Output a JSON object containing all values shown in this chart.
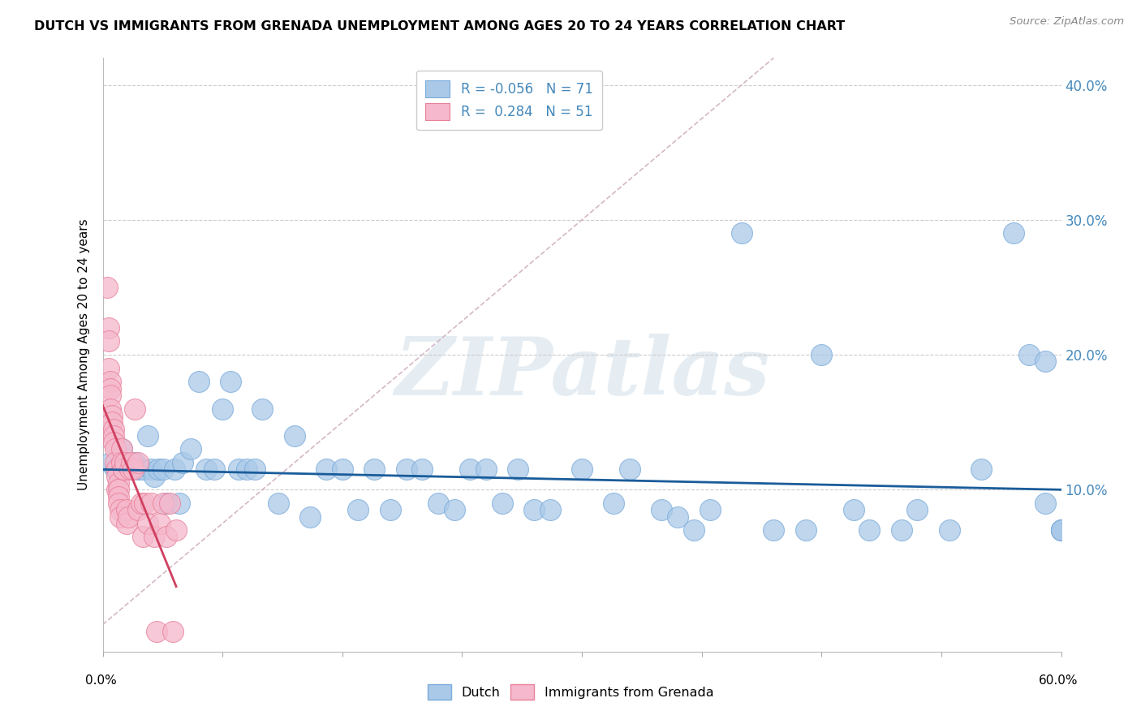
{
  "title": "DUTCH VS IMMIGRANTS FROM GRENADA UNEMPLOYMENT AMONG AGES 20 TO 24 YEARS CORRELATION CHART",
  "source": "Source: ZipAtlas.com",
  "ylabel": "Unemployment Among Ages 20 to 24 years",
  "xlim": [
    0.0,
    0.6
  ],
  "ylim": [
    -0.02,
    0.42
  ],
  "yticks": [
    0.1,
    0.2,
    0.3,
    0.4
  ],
  "ytick_labels": [
    "10.0%",
    "20.0%",
    "30.0%",
    "40.0%"
  ],
  "dutch_R": -0.056,
  "dutch_N": 71,
  "grenada_R": 0.284,
  "grenada_N": 51,
  "dutch_color": "#aac9e8",
  "dutch_edge": "#7aabdb",
  "grenada_color": "#f5b8cc",
  "grenada_edge": "#e8809a",
  "regression_blue": "#1a5c9a",
  "regression_pink": "#d04060",
  "diagonal_color": "#d0b0c0",
  "watermark": "ZIPatlas",
  "dutch_x": [
    0.005,
    0.008,
    0.01,
    0.012,
    0.015,
    0.018,
    0.02,
    0.022,
    0.025,
    0.028,
    0.03,
    0.032,
    0.035,
    0.038,
    0.04,
    0.045,
    0.048,
    0.05,
    0.055,
    0.06,
    0.065,
    0.07,
    0.075,
    0.08,
    0.085,
    0.09,
    0.095,
    0.1,
    0.11,
    0.12,
    0.13,
    0.14,
    0.15,
    0.16,
    0.17,
    0.18,
    0.19,
    0.2,
    0.21,
    0.22,
    0.23,
    0.24,
    0.25,
    0.26,
    0.27,
    0.28,
    0.3,
    0.32,
    0.33,
    0.35,
    0.36,
    0.37,
    0.38,
    0.4,
    0.42,
    0.44,
    0.45,
    0.47,
    0.48,
    0.5,
    0.51,
    0.53,
    0.55,
    0.57,
    0.58,
    0.59,
    0.59,
    0.6,
    0.6,
    0.6,
    0.6
  ],
  "dutch_y": [
    0.12,
    0.115,
    0.115,
    0.13,
    0.115,
    0.115,
    0.12,
    0.115,
    0.115,
    0.14,
    0.115,
    0.11,
    0.115,
    0.115,
    0.09,
    0.115,
    0.09,
    0.12,
    0.13,
    0.18,
    0.115,
    0.115,
    0.16,
    0.18,
    0.115,
    0.115,
    0.115,
    0.16,
    0.09,
    0.14,
    0.08,
    0.115,
    0.115,
    0.085,
    0.115,
    0.085,
    0.115,
    0.115,
    0.09,
    0.085,
    0.115,
    0.115,
    0.09,
    0.115,
    0.085,
    0.085,
    0.115,
    0.09,
    0.115,
    0.085,
    0.08,
    0.07,
    0.085,
    0.29,
    0.07,
    0.07,
    0.2,
    0.085,
    0.07,
    0.07,
    0.085,
    0.07,
    0.115,
    0.29,
    0.2,
    0.195,
    0.09,
    0.07,
    0.07,
    0.07,
    0.07
  ],
  "grenada_x": [
    0.003,
    0.004,
    0.004,
    0.004,
    0.005,
    0.005,
    0.005,
    0.005,
    0.006,
    0.006,
    0.007,
    0.007,
    0.007,
    0.008,
    0.008,
    0.009,
    0.009,
    0.009,
    0.01,
    0.01,
    0.01,
    0.01,
    0.011,
    0.011,
    0.012,
    0.012,
    0.013,
    0.013,
    0.014,
    0.015,
    0.015,
    0.016,
    0.017,
    0.018,
    0.019,
    0.02,
    0.022,
    0.022,
    0.024,
    0.025,
    0.026,
    0.028,
    0.03,
    0.032,
    0.034,
    0.036,
    0.038,
    0.04,
    0.042,
    0.044,
    0.046
  ],
  "grenada_y": [
    0.25,
    0.22,
    0.21,
    0.19,
    0.18,
    0.175,
    0.17,
    0.16,
    0.155,
    0.15,
    0.145,
    0.14,
    0.135,
    0.13,
    0.12,
    0.115,
    0.11,
    0.1,
    0.105,
    0.1,
    0.095,
    0.09,
    0.085,
    0.08,
    0.13,
    0.12,
    0.115,
    0.115,
    0.12,
    0.085,
    0.075,
    0.08,
    0.115,
    0.12,
    0.115,
    0.16,
    0.085,
    0.12,
    0.09,
    0.065,
    0.09,
    0.075,
    0.09,
    0.065,
    -0.005,
    0.075,
    0.09,
    0.065,
    0.09,
    -0.005,
    0.07
  ]
}
